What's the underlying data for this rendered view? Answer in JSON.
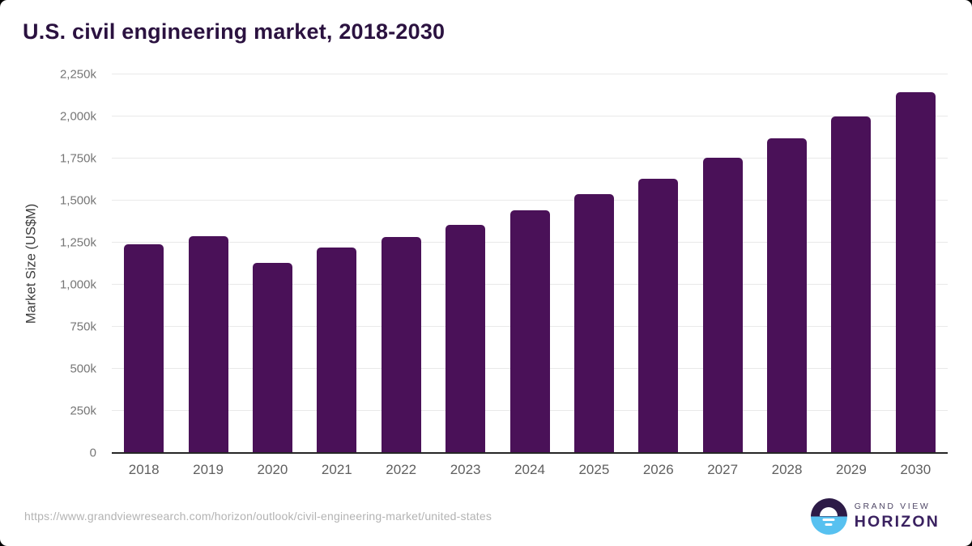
{
  "header": {
    "title": "U.S. civil engineering market, 2018-2030"
  },
  "chart_data": {
    "type": "bar",
    "title": "U.S. civil engineering market, 2018-2030",
    "categories": [
      "2018",
      "2019",
      "2020",
      "2021",
      "2022",
      "2023",
      "2024",
      "2025",
      "2026",
      "2027",
      "2028",
      "2029",
      "2030"
    ],
    "values": [
      1240,
      1290,
      1130,
      1220,
      1285,
      1355,
      1440,
      1540,
      1630,
      1755,
      1870,
      2000,
      2145
    ],
    "xlabel": "",
    "ylabel": "Market Size (US$M)",
    "ylim": [
      0,
      2250
    ],
    "yticks": [
      0,
      250,
      500,
      750,
      1000,
      1250,
      1500,
      1750,
      2000,
      2250
    ],
    "ytick_labels": [
      "0",
      "250k",
      "500k",
      "750k",
      "1,000k",
      "1,250k",
      "1,500k",
      "1,750k",
      "2,000k",
      "2,250k"
    ],
    "grid": true,
    "legend": "none"
  },
  "colors": {
    "bar": "#4a1158",
    "title": "#2b1240",
    "gridline": "#e9e9e9",
    "axis_line": "#262626",
    "logo_purple": "#2d1b47",
    "logo_blue": "#57c1f0"
  },
  "footer": {
    "source_url": "https://www.grandviewresearch.com/horizon/outlook/civil-engineering-market/united-states",
    "logo": {
      "line1": "GRAND VIEW",
      "line2": "HORIZON"
    }
  }
}
